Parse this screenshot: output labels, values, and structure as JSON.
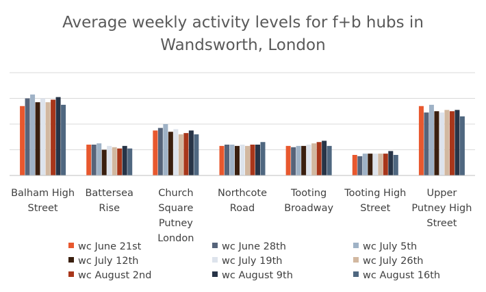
{
  "chart_data": {
    "type": "bar",
    "title": "Average weekly activity levels for f+b hubs in Wandsworth, London",
    "title_lines": [
      "Average weekly activity levels for f+b hubs in",
      "Wandsworth, London"
    ],
    "categories": [
      "Balham High Street",
      "Battersea Rise",
      "Church Square Putney London",
      "Northcote Road",
      "Tooting Broadway",
      "Tooting High Street",
      "Upper Putney High Street"
    ],
    "category_lines": [
      [
        "Balham High",
        "Street"
      ],
      [
        "Battersea",
        "Rise"
      ],
      [
        "Church",
        "Square",
        "Putney",
        "London"
      ],
      [
        "Northcote",
        "Road"
      ],
      [
        "Tooting",
        "Broadway"
      ],
      [
        "Tooting High",
        "Street"
      ],
      [
        "Upper",
        "Putney High",
        "Street"
      ]
    ],
    "ylim": [
      0,
      4
    ],
    "y_gridlines": [
      1,
      2,
      3,
      4
    ],
    "legend_position": "bottom",
    "grid": true,
    "series": [
      {
        "name": "wc June 21st",
        "color": "#E8582E",
        "values": [
          2.7,
          1.2,
          1.75,
          1.15,
          1.15,
          0.8,
          2.7
        ]
      },
      {
        "name": "wc June 28th",
        "color": "#56647A",
        "values": [
          3.0,
          1.2,
          1.85,
          1.2,
          1.1,
          0.75,
          2.45
        ]
      },
      {
        "name": "wc July 5th",
        "color": "#9FB2C6",
        "values": [
          3.15,
          1.25,
          2.0,
          1.2,
          1.15,
          0.85,
          2.75
        ]
      },
      {
        "name": "wc July 12th",
        "color": "#3A1F0F",
        "values": [
          2.85,
          1.0,
          1.7,
          1.15,
          1.15,
          0.85,
          2.5
        ]
      },
      {
        "name": "wc July 19th",
        "color": "#DDE3EC",
        "values": [
          3.0,
          1.15,
          1.8,
          1.2,
          1.2,
          0.85,
          2.45
        ]
      },
      {
        "name": "wc July 26th",
        "color": "#D2B8A0",
        "values": [
          2.85,
          1.1,
          1.6,
          1.15,
          1.25,
          0.85,
          2.55
        ]
      },
      {
        "name": "wc August 2nd",
        "color": "#A8361A",
        "values": [
          2.95,
          1.05,
          1.65,
          1.2,
          1.3,
          0.85,
          2.5
        ]
      },
      {
        "name": "wc August 9th",
        "color": "#273447",
        "values": [
          3.05,
          1.15,
          1.75,
          1.2,
          1.35,
          0.95,
          2.55
        ]
      },
      {
        "name": "wc August 16th",
        "color": "#4F6780",
        "values": [
          2.75,
          1.05,
          1.6,
          1.3,
          1.15,
          0.8,
          2.3
        ]
      }
    ]
  }
}
